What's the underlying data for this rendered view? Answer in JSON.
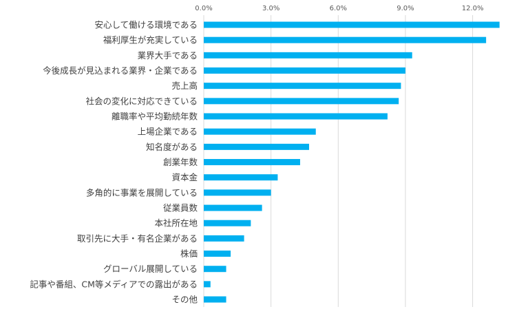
{
  "chart_data": {
    "type": "bar",
    "orientation": "horizontal",
    "title": "",
    "xlabel": "",
    "ylabel": "",
    "xlim": [
      0,
      13.5
    ],
    "x_ticks": [
      "0.0%",
      "3.0%",
      "6.0%",
      "9.0%",
      "12.0%"
    ],
    "x_tick_values": [
      0,
      3,
      6,
      9,
      12
    ],
    "axis_position": "top",
    "grid": true,
    "bar_color": "#00B0F0",
    "grid_color": "#D9D9D9",
    "categories": [
      "安心して働ける環境である",
      "福利厚生が充実している",
      "業界大手である",
      "今後成長が見込まれる業界・企業である",
      "売上高",
      "社会の変化に対応できている",
      "離職率や平均勤続年数",
      "上場企業である",
      "知名度がある",
      "創業年数",
      "資本金",
      "多角的に事業を展開している",
      "従業員数",
      "本社所在地",
      "取引先に大手・有名企業がある",
      "株価",
      "グローバル展開している",
      "記事や番組、CM等メディアでの露出がある",
      "その他"
    ],
    "values": [
      13.2,
      12.6,
      9.3,
      9.0,
      8.8,
      8.7,
      8.2,
      5.0,
      4.7,
      4.3,
      3.3,
      3.0,
      2.6,
      2.1,
      1.8,
      1.2,
      1.0,
      0.3,
      1.0
    ]
  }
}
